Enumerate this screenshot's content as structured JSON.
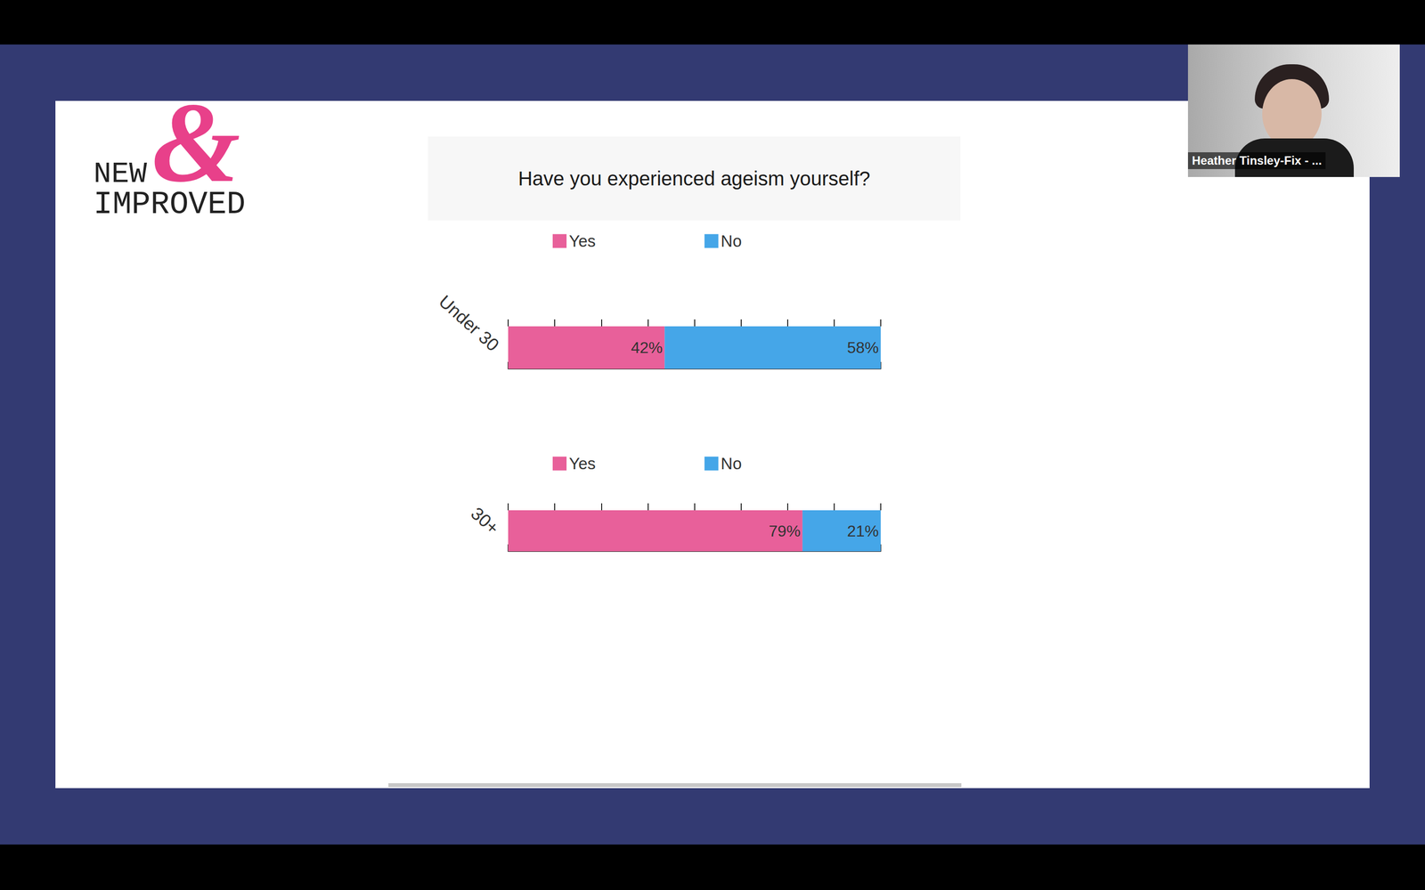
{
  "title": "Have you experienced ageism yourself?",
  "logo": {
    "symbol": "&",
    "line1": "NEW",
    "line2": "IMPROVED"
  },
  "presenter": "Heather Tinsley-Fix - ...",
  "chart_data": [
    {
      "type": "bar",
      "orientation": "horizontal",
      "stacked": true,
      "data_labels": true,
      "tick_labels": "y",
      "grid": false,
      "legend": "top",
      "categories": [
        "Under 30"
      ],
      "series": [
        {
          "name": "Yes",
          "color": "#e8609a",
          "values": [
            42
          ],
          "value_labels": [
            "42%"
          ]
        },
        {
          "name": "No",
          "color": "#45a6e8",
          "values": [
            58
          ],
          "value_labels": [
            "58%"
          ]
        }
      ],
      "xlim": [
        0,
        100
      ],
      "xticks": [
        0,
        12.5,
        25,
        37.5,
        50,
        62.5,
        75,
        87.5,
        100
      ]
    },
    {
      "type": "bar",
      "orientation": "horizontal",
      "stacked": true,
      "data_labels": true,
      "tick_labels": "y",
      "grid": false,
      "legend": "top",
      "categories": [
        "30+"
      ],
      "series": [
        {
          "name": "Yes",
          "color": "#e8609a",
          "values": [
            79
          ],
          "value_labels": [
            "79%"
          ]
        },
        {
          "name": "No",
          "color": "#45a6e8",
          "values": [
            21
          ],
          "value_labels": [
            "21%"
          ]
        }
      ],
      "xlim": [
        0,
        100
      ],
      "xticks": [
        0,
        12.5,
        25,
        37.5,
        50,
        62.5,
        75,
        87.5,
        100
      ]
    }
  ]
}
